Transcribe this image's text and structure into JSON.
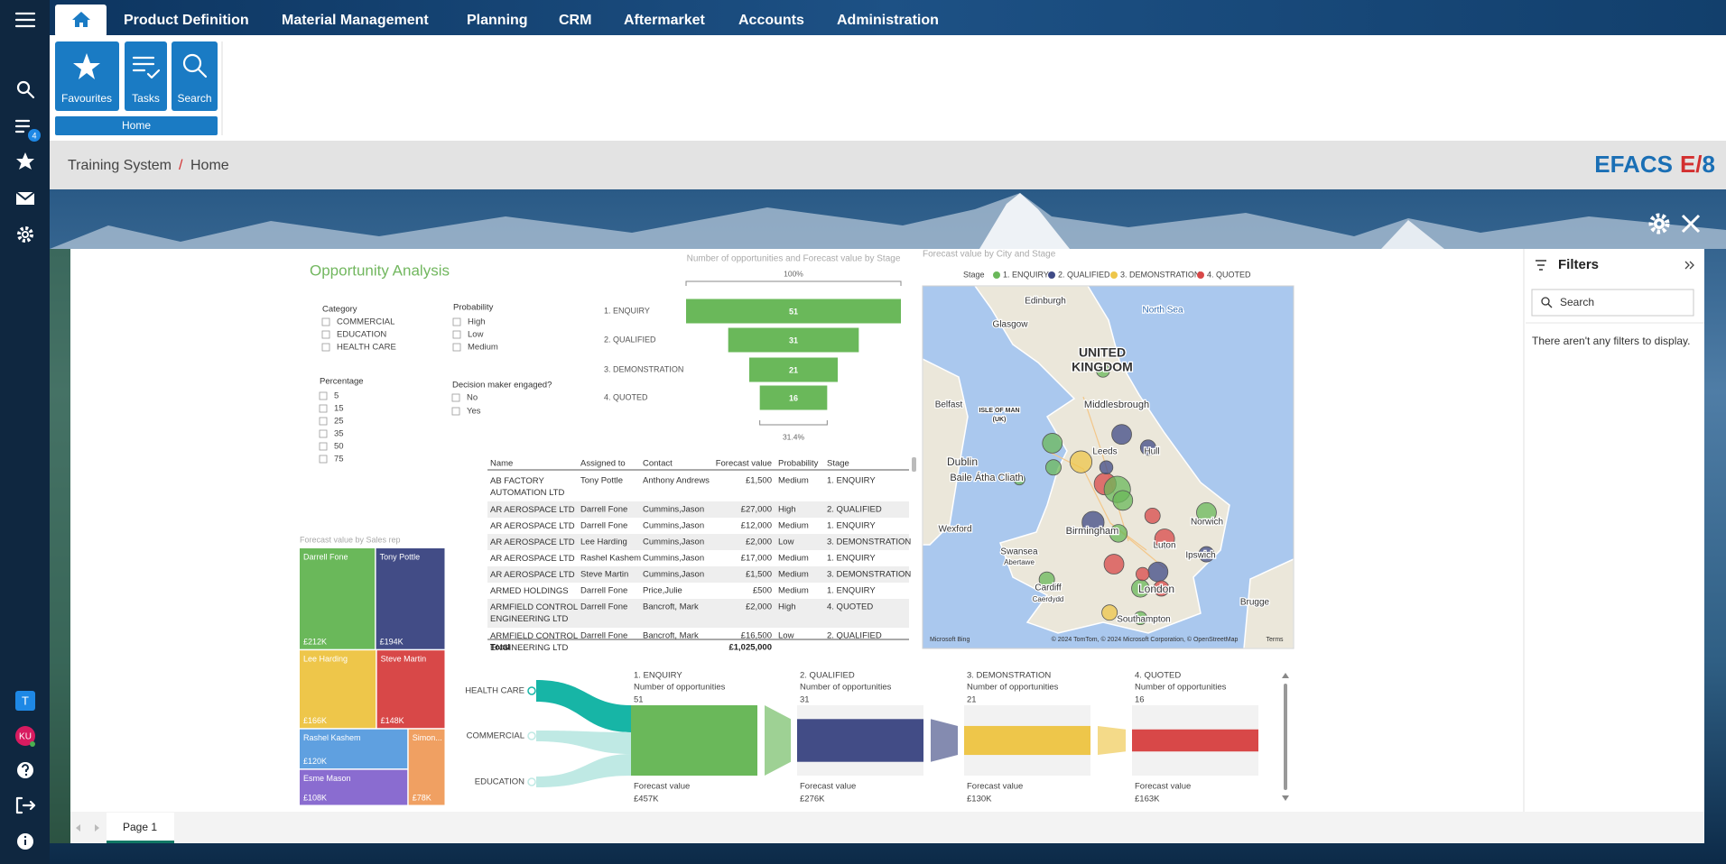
{
  "sidebar": {
    "task_badge": "4",
    "user_initial": "T",
    "user_avatar": "KU"
  },
  "nav": {
    "items": [
      "Product Definition",
      "Material Management",
      "Planning",
      "CRM",
      "Aftermarket",
      "Accounts",
      "Administration"
    ]
  },
  "ribbon": {
    "buttons": [
      "Favourites",
      "Tasks",
      "Search"
    ],
    "group": "Home"
  },
  "breadcrumb": {
    "items": [
      "Training System",
      "Home"
    ],
    "separator": "/"
  },
  "brand": {
    "name": "EFACS",
    "edition": "E",
    "separator": "/",
    "version": "8"
  },
  "report": {
    "title": "Opportunity Analysis",
    "slicers": [
      {
        "title": "Category",
        "items": [
          "COMMERCIAL",
          "EDUCATION",
          "HEALTH CARE"
        ]
      },
      {
        "title": "Probability",
        "items": [
          "High",
          "Low",
          "Medium"
        ]
      },
      {
        "title": "Percentage",
        "items": [
          "5",
          "15",
          "25",
          "35",
          "50",
          "75"
        ]
      },
      {
        "title": "Decision maker engaged?",
        "items": [
          "No",
          "Yes"
        ]
      }
    ],
    "funnel": {
      "title": "Number of opportunities and Forecast value by Stage",
      "top_label": "100%",
      "bottom_label": "31.4%",
      "categories": [
        "1. ENQUIRY",
        "2. QUALIFIED",
        "3. DEMONSTRATION",
        "4. QUOTED"
      ],
      "values": [
        51,
        31,
        21,
        16
      ],
      "color": "#6ab85a"
    },
    "map": {
      "title": "Forecast value by City and Stage",
      "legend_title": "Stage",
      "legend": [
        {
          "name": "1. ENQUIRY",
          "color": "#6ab85a"
        },
        {
          "name": "2. QUALIFIED",
          "color": "#3f4a86"
        },
        {
          "name": "3. DEMONSTRATION",
          "color": "#eec64a"
        },
        {
          "name": "4. QUOTED",
          "color": "#d84848"
        }
      ],
      "labels": [
        "Edinburgh",
        "Glasgow",
        "North Sea",
        "UNITED",
        "KINGDOM",
        "ISLE OF MAN",
        "(UK)",
        "Belfast",
        "Middlesbrough",
        "Dublin",
        "Baile Átha Cliath",
        "Leeds",
        "Hull",
        "Wexford",
        "Birmingham",
        "Norwich",
        "Luton",
        "Swansea",
        "Abertawe",
        "Ipswich",
        "Cardiff",
        "Caerdydd",
        "London",
        "Southampton",
        "Brugge"
      ],
      "attribution": [
        "Microsoft Bing",
        "© 2024 TomTom, © 2024 Microsoft Corporation, © OpenStreetMap",
        "Terms"
      ]
    },
    "table": {
      "columns": [
        "Name",
        "Assigned to",
        "Contact",
        "Forecast value",
        "Probability",
        "Stage"
      ],
      "rows": [
        [
          "AB FACTORY AUTOMATION LTD",
          "Tony Pottle",
          "Anthony Andrews",
          "£1,500",
          "Medium",
          "1. ENQUIRY"
        ],
        [
          "AR AEROSPACE LTD",
          "Darrell Fone",
          "Cummins,Jason",
          "£27,000",
          "High",
          "2. QUALIFIED"
        ],
        [
          "AR AEROSPACE LTD",
          "Darrell Fone",
          "Cummins,Jason",
          "£12,000",
          "Medium",
          "1. ENQUIRY"
        ],
        [
          "AR AEROSPACE LTD",
          "Lee Harding",
          "Cummins,Jason",
          "£2,000",
          "Low",
          "3. DEMONSTRATION"
        ],
        [
          "AR AEROSPACE LTD",
          "Rashel Kashem",
          "Cummins,Jason",
          "£17,000",
          "Medium",
          "1. ENQUIRY"
        ],
        [
          "AR AEROSPACE LTD",
          "Steve Martin",
          "Cummins,Jason",
          "£1,500",
          "Medium",
          "3. DEMONSTRATION"
        ],
        [
          "ARMED HOLDINGS",
          "Darrell Fone",
          "Price,Julie",
          "£500",
          "Medium",
          "1. ENQUIRY"
        ],
        [
          "ARMFIELD CONTROL ENGINEERING LTD",
          "Darrell Fone",
          "Bancroft, Mark",
          "£2,000",
          "High",
          "4. QUOTED"
        ],
        [
          "ARMFIELD CONTROL ENGINEERING LTD",
          "Darrell Fone",
          "Bancroft, Mark",
          "£16,500",
          "Low",
          "2. QUALIFIED"
        ]
      ],
      "total_label": "Total",
      "total_value": "£1,025,000"
    },
    "treemap": {
      "title": "Forecast value by Sales rep",
      "categories": [
        "Darrell Fone",
        "Tony Pottle",
        "Lee Harding",
        "Steve Martin",
        "Rashel Kashem",
        "Esme Mason",
        "Simon..."
      ],
      "values": [
        212,
        194,
        166,
        148,
        120,
        108,
        78
      ],
      "value_labels": [
        "£212K",
        "£194K",
        "£166K",
        "£148K",
        "£120K",
        "£108K",
        "£78K"
      ],
      "colors": [
        "#6ab85a",
        "#424c86",
        "#eec64a",
        "#d84848",
        "#5fa0e0",
        "#8a6cd0",
        "#f0a062"
      ]
    },
    "decomposition": {
      "categories": [
        "HEALTH CARE",
        "COMMERCIAL",
        "EDUCATION"
      ],
      "stages": [
        {
          "name": "1. ENQUIRY",
          "count_label": "Number of opportunities",
          "count": 51,
          "forecast_label": "Forecast value",
          "forecast": "£457K",
          "color": "#6ab85a"
        },
        {
          "name": "2. QUALIFIED",
          "count_label": "Number of opportunities",
          "count": 31,
          "forecast_label": "Forecast value",
          "forecast": "£276K",
          "color": "#424c86"
        },
        {
          "name": "3. DEMONSTRATION",
          "count_label": "Number of opportunities",
          "count": 21,
          "forecast_label": "Forecast value",
          "forecast": "£130K",
          "color": "#eec64a"
        },
        {
          "name": "4. QUOTED",
          "count_label": "Number of opportunities",
          "count": 16,
          "forecast_label": "Forecast value",
          "forecast": "£163K",
          "color": "#d84848"
        }
      ]
    }
  },
  "filters": {
    "title": "Filters",
    "search_placeholder": "Search",
    "empty_message": "There aren't any filters to display."
  },
  "pages": [
    "Page 1"
  ]
}
